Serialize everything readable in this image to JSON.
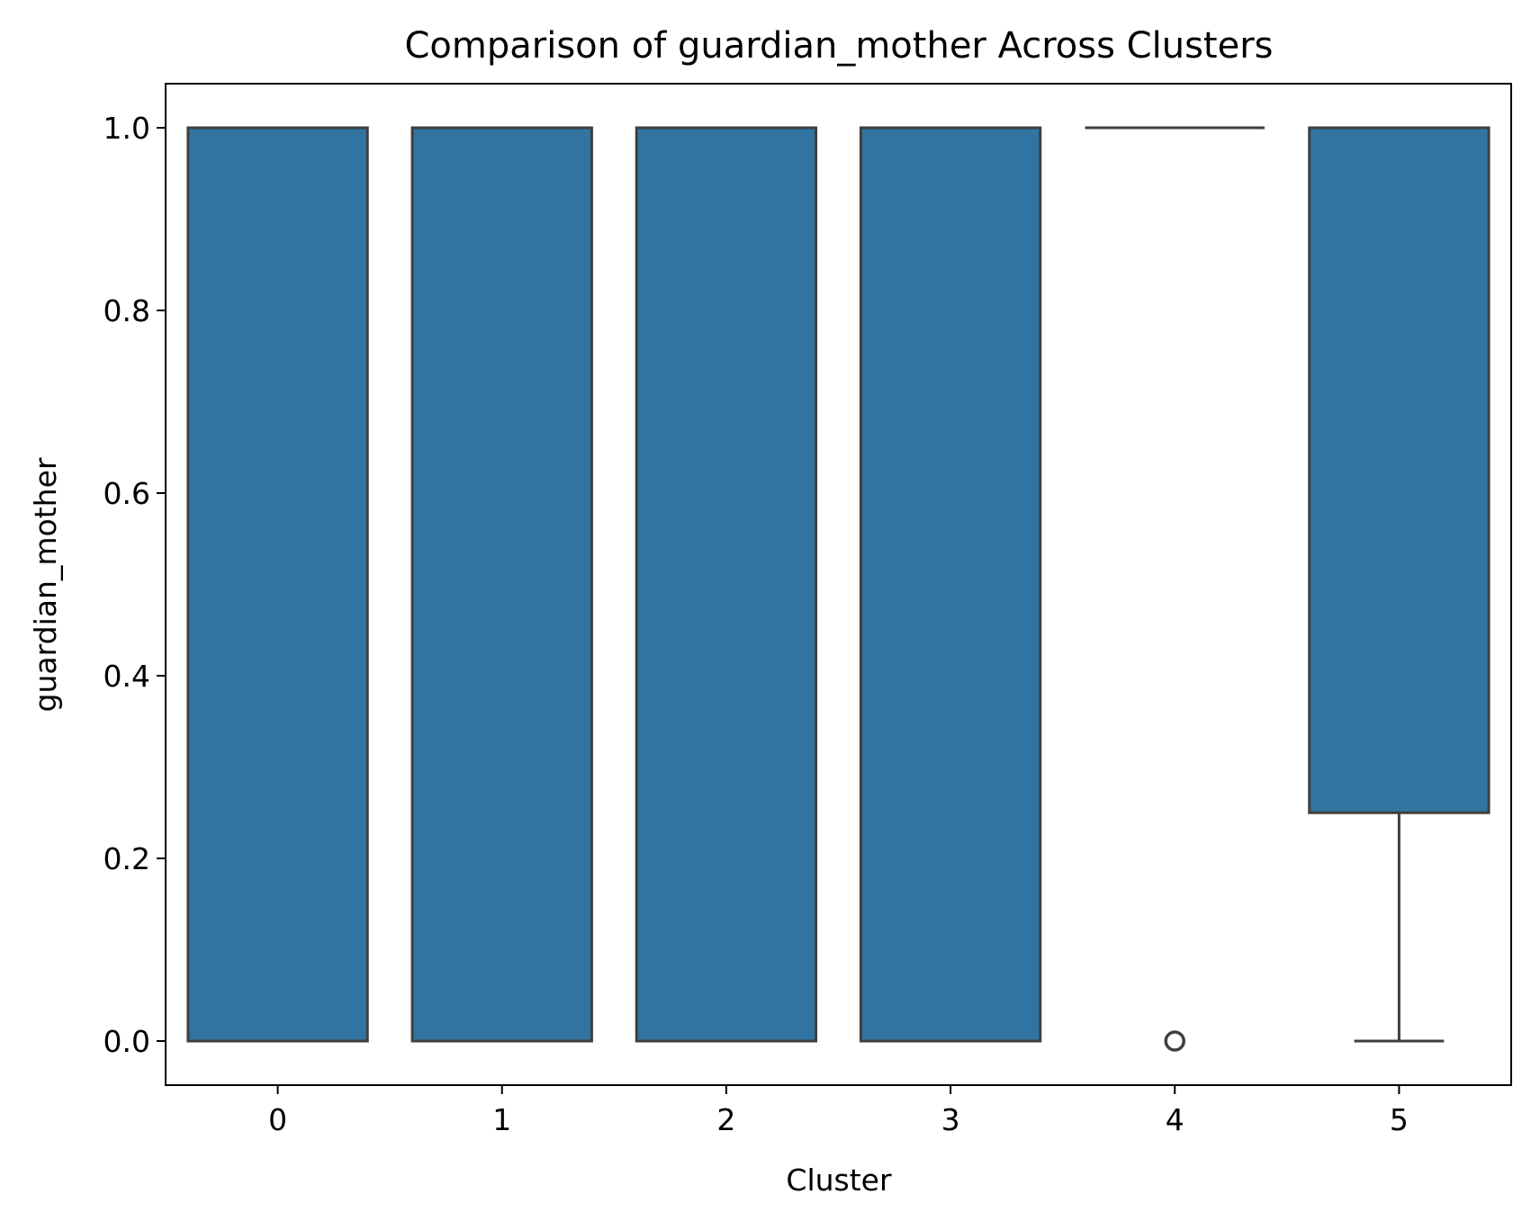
{
  "chart_data": {
    "type": "box",
    "title": "Comparison of guardian_mother Across Clusters",
    "xlabel": "Cluster",
    "ylabel": "guardian_mother",
    "categories": [
      "0",
      "1",
      "2",
      "3",
      "4",
      "5"
    ],
    "ylim": [
      -0.05,
      1.05
    ],
    "yticks": [
      "0.0",
      "0.2",
      "0.4",
      "0.6",
      "0.8",
      "1.0"
    ],
    "box_color": "#3274a1",
    "line_color": "#3f3f3f",
    "boxes": [
      {
        "category": "0",
        "whisker_low": 0.0,
        "q1": 0.0,
        "median": 1.0,
        "q3": 1.0,
        "whisker_high": 1.0,
        "outliers": []
      },
      {
        "category": "1",
        "whisker_low": 0.0,
        "q1": 0.0,
        "median": 1.0,
        "q3": 1.0,
        "whisker_high": 1.0,
        "outliers": []
      },
      {
        "category": "2",
        "whisker_low": 0.0,
        "q1": 0.0,
        "median": 1.0,
        "q3": 1.0,
        "whisker_high": 1.0,
        "outliers": []
      },
      {
        "category": "3",
        "whisker_low": 0.0,
        "q1": 0.0,
        "median": 1.0,
        "q3": 1.0,
        "whisker_high": 1.0,
        "outliers": []
      },
      {
        "category": "4",
        "whisker_low": 1.0,
        "q1": 1.0,
        "median": 1.0,
        "q3": 1.0,
        "whisker_high": 1.0,
        "outliers": [
          0.0
        ]
      },
      {
        "category": "5",
        "whisker_low": 0.0,
        "q1": 0.25,
        "median": 1.0,
        "q3": 1.0,
        "whisker_high": 1.0,
        "outliers": []
      }
    ]
  }
}
